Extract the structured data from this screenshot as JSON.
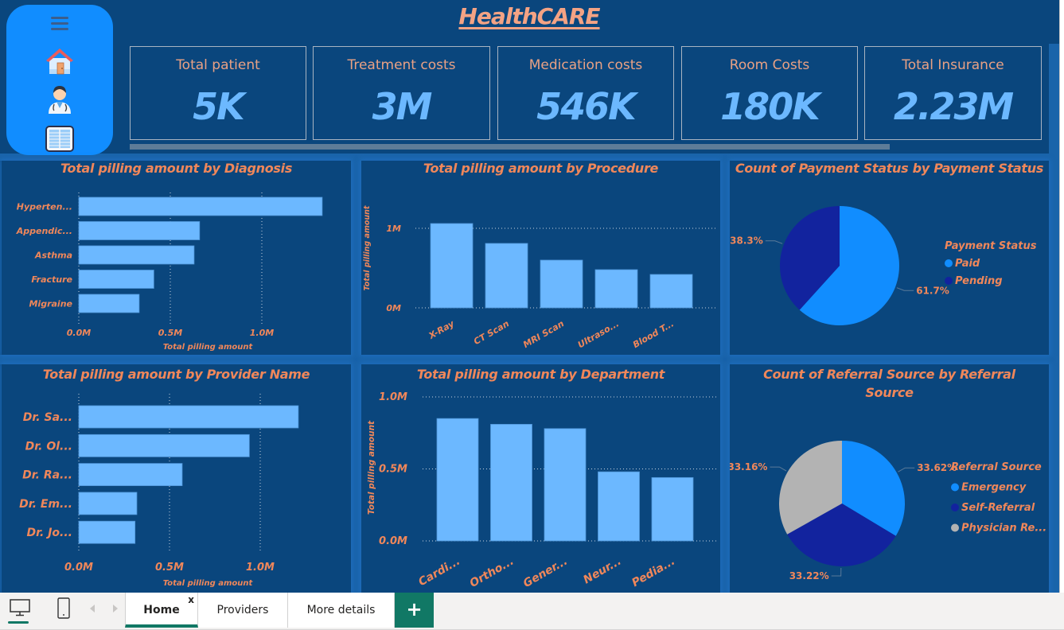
{
  "app": {
    "title": "HealthCARE",
    "colors": {
      "canvas": "#0a467d",
      "accent": "#118dff",
      "title": "#f4a384",
      "kpi_value": "#6cb8ff",
      "bar": "#6cb8ff",
      "label": "#f0875a",
      "pending": "#12239e",
      "physician": "#b3b3b3",
      "tab_accent": "#117865"
    }
  },
  "sidebar": {
    "items": [
      {
        "icon": "hamburger-menu-icon"
      },
      {
        "icon": "home-icon"
      },
      {
        "icon": "doctor-icon"
      },
      {
        "icon": "table-book-icon"
      }
    ]
  },
  "kpis": [
    {
      "label": "Total patient",
      "value": "5K"
    },
    {
      "label": "Treatment costs",
      "value": "3M"
    },
    {
      "label": "Medication costs",
      "value": "546K"
    },
    {
      "label": "Room Costs",
      "value": "180K"
    },
    {
      "label": "Total Insurance",
      "value": "2.23M"
    }
  ],
  "chart_data": [
    {
      "id": "diagnosis",
      "type": "bar",
      "orientation": "horizontal",
      "title": "Total pilling amount by Diagnosis",
      "categories": [
        "Hyperten...",
        "Appendic...",
        "Asthma",
        "Fracture",
        "Migraine"
      ],
      "values": [
        1.33,
        0.66,
        0.63,
        0.41,
        0.33
      ],
      "unit": "M",
      "xlabel": "Total pilling amount",
      "ylabel": "",
      "xlim": [
        0,
        1.33
      ],
      "ticks": [
        "0.0M",
        "0.5M",
        "1.0M"
      ],
      "tick_values": [
        0,
        0.5,
        1.0
      ],
      "grid": true
    },
    {
      "id": "procedure",
      "type": "bar",
      "orientation": "vertical",
      "title": "Total pilling amount by Procedure",
      "categories": [
        "X-Ray",
        "CT Scan",
        "MRI Scan",
        "Ultraso...",
        "Blood T..."
      ],
      "values": [
        1.06,
        0.81,
        0.6,
        0.48,
        0.42
      ],
      "unit": "M",
      "xlabel": "",
      "ylabel": "Total pilling amount",
      "ylim": [
        0,
        1.2
      ],
      "ticks": [
        "0M",
        "1M"
      ],
      "tick_values": [
        0,
        1
      ],
      "grid": true
    },
    {
      "id": "payment",
      "type": "pie",
      "title": "Count of Payment Status by Payment Status",
      "legend_title": "Payment Status",
      "legend_position": "right",
      "labels": [
        "Paid",
        "Pending"
      ],
      "values": [
        61.7,
        38.3
      ],
      "data_labels": [
        "61.7%",
        "38.3%"
      ],
      "colors": [
        "#118dff",
        "#12239e"
      ]
    },
    {
      "id": "provider",
      "type": "bar",
      "orientation": "horizontal",
      "title": "Total pilling amount by Provider Name",
      "categories": [
        "Dr. Sa...",
        "Dr. Ol...",
        "Dr. Ra...",
        "Dr. Em...",
        "Dr. Jo..."
      ],
      "values": [
        1.21,
        0.94,
        0.57,
        0.32,
        0.31
      ],
      "unit": "M",
      "xlabel": "Total pilling amount",
      "ylabel": "",
      "xlim": [
        0,
        1.33
      ],
      "ticks": [
        "0.0M",
        "0.5M",
        "1.0M"
      ],
      "tick_values": [
        0,
        0.5,
        1.0
      ],
      "grid": true
    },
    {
      "id": "department",
      "type": "bar",
      "orientation": "vertical",
      "title": "Total pilling amount by Department",
      "categories": [
        "Cardi...",
        "Ortho...",
        "Gener...",
        "Neur...",
        "Pedia..."
      ],
      "values": [
        0.85,
        0.81,
        0.78,
        0.48,
        0.44
      ],
      "unit": "M",
      "xlabel": "",
      "ylabel": "Total pilling amount",
      "ylim": [
        0,
        1.0
      ],
      "ticks": [
        "0.0M",
        "0.5M",
        "1.0M"
      ],
      "tick_values": [
        0,
        0.5,
        1.0
      ],
      "grid": true
    },
    {
      "id": "referral",
      "type": "pie",
      "title": "Count of Referral Source by Referral Source",
      "legend_title": "Referral Source",
      "legend_position": "right",
      "labels": [
        "Emergency",
        "Self-Referral",
        "Physician Re..."
      ],
      "values": [
        33.62,
        33.22,
        33.16
      ],
      "data_labels": [
        "33.62%",
        "33.22%",
        "33.16%"
      ],
      "colors": [
        "#118dff",
        "#12239e",
        "#b3b3b3"
      ]
    }
  ],
  "bottom_bar": {
    "view_icons": [
      "desktop-view-icon",
      "mobile-view-icon"
    ],
    "tabs": [
      {
        "label": "Home",
        "active": true,
        "close": "x"
      },
      {
        "label": "Providers",
        "active": false
      },
      {
        "label": "More details",
        "active": false
      }
    ],
    "add_label": "+"
  }
}
